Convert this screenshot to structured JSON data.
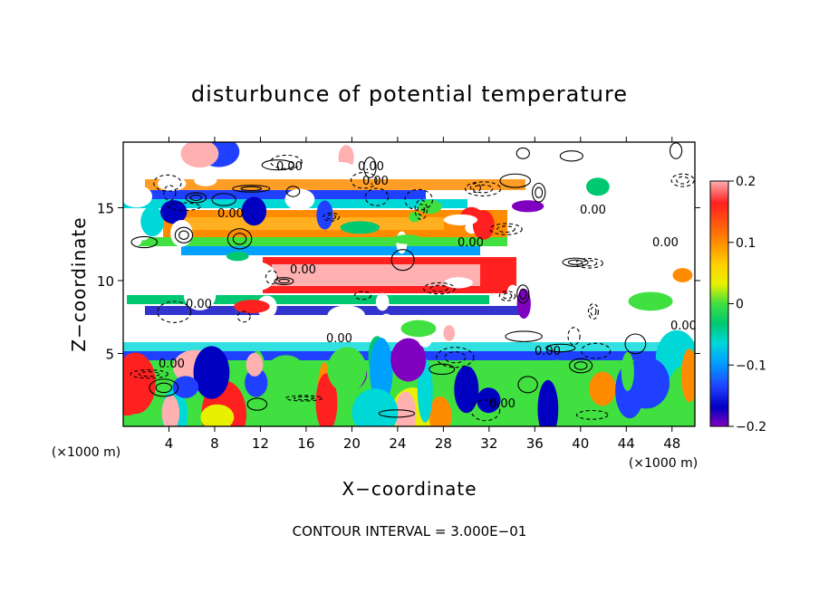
{
  "chart_data": {
    "type": "heatmap",
    "title": "disturbunce of potential temperature",
    "xlabel": "X−coordinate",
    "ylabel": "Z−coordinate",
    "x_unit": "(×1000 m)",
    "z_unit": "(×1000 m)",
    "xlim": [
      0,
      50
    ],
    "ylim": [
      0,
      19.5
    ],
    "x_ticks": [
      4,
      8,
      12,
      16,
      20,
      24,
      28,
      32,
      36,
      40,
      44,
      48
    ],
    "y_ticks": [
      5,
      10,
      15
    ],
    "colorbar": {
      "min": -0.2,
      "max": 0.2,
      "ticks": [
        "0.2",
        "0.1",
        "0",
        "−0.1",
        "−0.2"
      ],
      "colors": [
        "#ffb0b0",
        "#ff2020",
        "#ff8c00",
        "#ffd000",
        "#e8f000",
        "#40e040",
        "#00c870",
        "#00d8d8",
        "#00a0ff",
        "#2040ff",
        "#0000c0",
        "#8000c0"
      ]
    },
    "contour_labels": [
      "0.00"
    ],
    "footer": "CONTOUR INTERVAL = 3.000E−01"
  }
}
